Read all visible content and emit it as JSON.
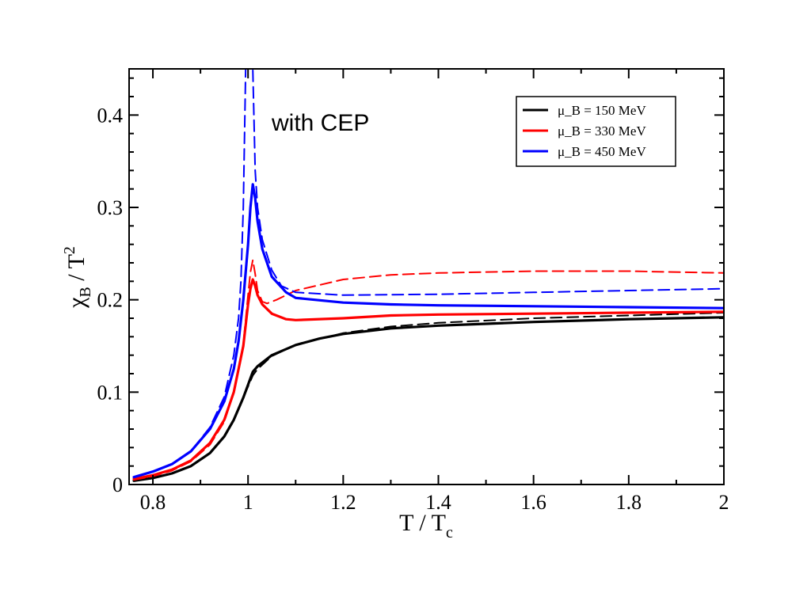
{
  "chart_data": {
    "type": "line",
    "xlim": [
      0.75,
      2.0
    ],
    "ylim": [
      0,
      0.45
    ],
    "xticks": [
      0.8,
      1,
      1.2,
      1.4,
      1.6,
      1.8,
      2
    ],
    "yticks": [
      0,
      0.1,
      0.2,
      0.3,
      0.4
    ],
    "xtick_labels": [
      "0.8",
      "1",
      "1.2",
      "1.4",
      "1.6",
      "1.8",
      "2"
    ],
    "ytick_labels": [
      "0",
      "0.1",
      "0.2",
      "0.3",
      "0.4"
    ],
    "xlabel": {
      "main": "T / T",
      "sub": "c"
    },
    "ylabel": {
      "main": "χ",
      "sub": "B",
      "rest": "/ T",
      "sup": "2"
    },
    "annotation": {
      "text": "with CEP",
      "color": "#3333cc"
    },
    "grid": false,
    "legend_position": "top-right",
    "series": [
      {
        "name": "μ_B = 150 MeV",
        "color": "#000000",
        "style": "solid",
        "x": [
          0.76,
          0.8,
          0.84,
          0.88,
          0.92,
          0.95,
          0.97,
          0.99,
          1.0,
          1.01,
          1.02,
          1.05,
          1.1,
          1.15,
          1.2,
          1.3,
          1.4,
          1.5,
          1.6,
          1.8,
          2.0
        ],
        "y": [
          0.004,
          0.007,
          0.012,
          0.02,
          0.034,
          0.052,
          0.07,
          0.094,
          0.108,
          0.122,
          0.128,
          0.14,
          0.151,
          0.158,
          0.163,
          0.169,
          0.172,
          0.174,
          0.176,
          0.179,
          0.181
        ]
      },
      {
        "name": "μ_B = 150 MeV (with CEP)",
        "color": "#000000",
        "style": "dashed",
        "x": [
          0.76,
          0.8,
          0.84,
          0.88,
          0.92,
          0.95,
          0.97,
          0.99,
          1.0,
          1.01,
          1.02,
          1.05,
          1.1,
          1.2,
          1.3,
          1.4,
          1.6,
          1.8,
          2.0
        ],
        "y": [
          0.004,
          0.007,
          0.012,
          0.02,
          0.034,
          0.052,
          0.07,
          0.094,
          0.106,
          0.118,
          0.125,
          0.139,
          0.151,
          0.164,
          0.171,
          0.175,
          0.18,
          0.183,
          0.186
        ]
      },
      {
        "name": "μ_B = 330 MeV",
        "color": "#ff0000",
        "style": "solid",
        "x": [
          0.76,
          0.8,
          0.84,
          0.88,
          0.92,
          0.95,
          0.97,
          0.99,
          1.0,
          1.005,
          1.01,
          1.015,
          1.02,
          1.03,
          1.05,
          1.08,
          1.1,
          1.2,
          1.3,
          1.4,
          1.6,
          1.8,
          2.0
        ],
        "y": [
          0.006,
          0.01,
          0.016,
          0.026,
          0.045,
          0.07,
          0.1,
          0.15,
          0.195,
          0.212,
          0.222,
          0.215,
          0.205,
          0.195,
          0.185,
          0.179,
          0.178,
          0.18,
          0.183,
          0.184,
          0.185,
          0.186,
          0.187
        ]
      },
      {
        "name": "μ_B = 330 MeV (with CEP)",
        "color": "#ff0000",
        "style": "dashed",
        "x": [
          0.76,
          0.8,
          0.84,
          0.88,
          0.92,
          0.95,
          0.97,
          0.99,
          1.0,
          1.005,
          1.01,
          1.015,
          1.02,
          1.03,
          1.04,
          1.06,
          1.1,
          1.2,
          1.3,
          1.4,
          1.6,
          1.8,
          2.0
        ],
        "y": [
          0.005,
          0.009,
          0.015,
          0.025,
          0.043,
          0.068,
          0.1,
          0.152,
          0.205,
          0.23,
          0.243,
          0.228,
          0.21,
          0.198,
          0.196,
          0.2,
          0.21,
          0.222,
          0.227,
          0.229,
          0.231,
          0.231,
          0.229
        ]
      },
      {
        "name": "μ_B = 450 MeV",
        "color": "#0000ff",
        "style": "solid",
        "x": [
          0.76,
          0.8,
          0.84,
          0.88,
          0.92,
          0.95,
          0.97,
          0.98,
          0.99,
          1.0,
          1.005,
          1.01,
          1.015,
          1.02,
          1.03,
          1.05,
          1.08,
          1.1,
          1.2,
          1.3,
          1.4,
          1.6,
          1.8,
          2.0
        ],
        "y": [
          0.008,
          0.014,
          0.022,
          0.036,
          0.06,
          0.09,
          0.125,
          0.155,
          0.2,
          0.26,
          0.3,
          0.325,
          0.31,
          0.285,
          0.255,
          0.225,
          0.208,
          0.202,
          0.197,
          0.195,
          0.194,
          0.193,
          0.192,
          0.191
        ]
      },
      {
        "name": "μ_B = 450 MeV (with CEP)",
        "color": "#0000ff",
        "style": "dashed",
        "x": [
          0.76,
          0.8,
          0.84,
          0.88,
          0.92,
          0.95,
          0.97,
          0.98,
          0.985,
          0.99,
          0.995,
          1.0,
          1.005,
          1.01,
          1.015,
          1.02,
          1.03,
          1.05,
          1.07,
          1.1,
          1.2,
          1.4,
          1.6,
          1.8,
          2.0
        ],
        "y": [
          0.008,
          0.014,
          0.022,
          0.036,
          0.062,
          0.095,
          0.14,
          0.18,
          0.22,
          0.3,
          0.45,
          0.45,
          0.45,
          0.45,
          0.34,
          0.3,
          0.265,
          0.232,
          0.215,
          0.208,
          0.205,
          0.206,
          0.208,
          0.21,
          0.212
        ]
      }
    ],
    "legend": [
      {
        "label": "μ_B = 150 MeV",
        "color": "#000000"
      },
      {
        "label": "μ_B = 330 MeV",
        "color": "#ff0000"
      },
      {
        "label": "μ_B = 450 MeV",
        "color": "#0000ff"
      }
    ]
  }
}
